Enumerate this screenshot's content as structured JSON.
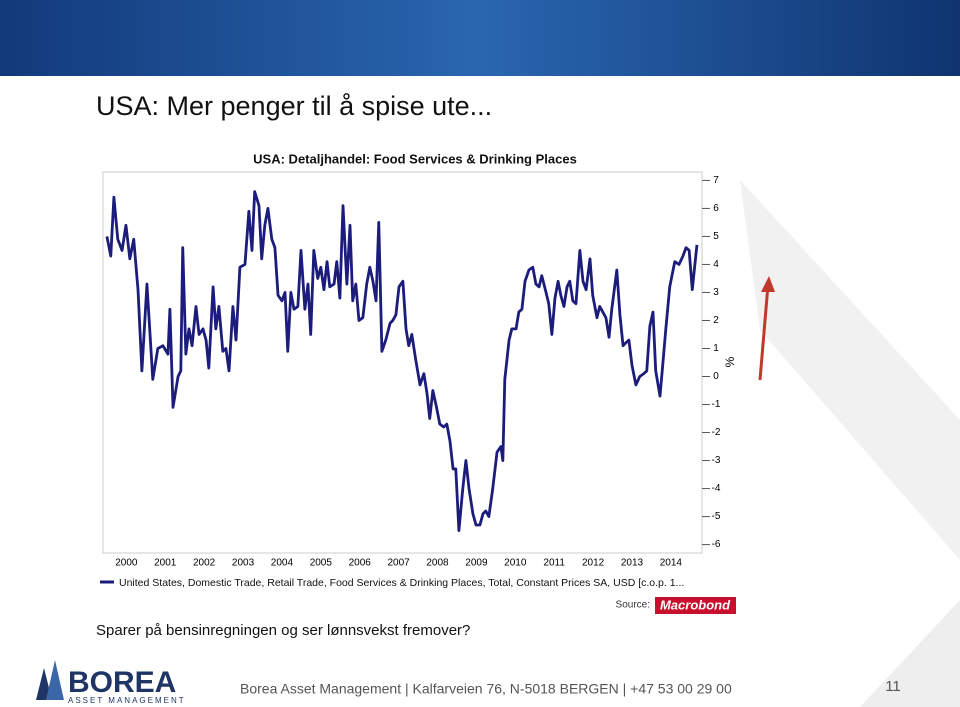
{
  "slide": {
    "title": "USA: Mer penger til å spise ute...",
    "note": "Sparer på bensinregningen og ser lønnsvekst fremover?",
    "logo": "BOREA",
    "logo_sub": "ASSET MANAGEMENT",
    "footer": "Borea Asset Management | Kalfarveien 76, N-5018 BERGEN | +47 53 00 29 00",
    "page_number": "11"
  },
  "chart_data": {
    "type": "line",
    "title": "USA: Detaljhandel: Food Services & Drinking Places",
    "y_axis_label": "%",
    "source": "Source:",
    "source_logo": "Macrobond",
    "xlim": [
      1999.9,
      2015.3
    ],
    "xticks": [
      {
        "value": 2000.5,
        "label": "2000"
      },
      {
        "value": 2001.5,
        "label": "2001"
      },
      {
        "value": 2002.5,
        "label": "2002"
      },
      {
        "value": 2003.5,
        "label": "2003"
      },
      {
        "value": 2004.5,
        "label": "2004"
      },
      {
        "value": 2005.5,
        "label": "2005"
      },
      {
        "value": 2006.5,
        "label": "2006"
      },
      {
        "value": 2007.5,
        "label": "2007"
      },
      {
        "value": 2008.5,
        "label": "2008"
      },
      {
        "value": 2009.5,
        "label": "2009"
      },
      {
        "value": 2010.5,
        "label": "2010"
      },
      {
        "value": 2011.5,
        "label": "2011"
      },
      {
        "value": 2012.5,
        "label": "2012"
      },
      {
        "value": 2013.5,
        "label": "2013"
      },
      {
        "value": 2014.5,
        "label": "2014"
      }
    ],
    "ylim": [
      -6.3,
      7.3
    ],
    "yticks": [
      -6,
      -5,
      -4,
      -3,
      -2,
      -1,
      0,
      1,
      2,
      3,
      4,
      5,
      6,
      7
    ],
    "x": [
      2000.0,
      2000.1,
      2000.18,
      2000.28,
      2000.39,
      2000.49,
      2000.59,
      2000.69,
      2000.8,
      2000.9,
      2001.03,
      2001.18,
      2001.31,
      2001.44,
      2001.57,
      2001.62,
      2001.7,
      2001.83,
      2001.9,
      2001.95,
      2002.03,
      2002.11,
      2002.19,
      2002.29,
      2002.37,
      2002.47,
      2002.55,
      2002.62,
      2002.73,
      2002.8,
      2002.88,
      2002.98,
      2003.06,
      2003.14,
      2003.24,
      2003.32,
      2003.42,
      2003.55,
      2003.65,
      2003.73,
      2003.8,
      2003.91,
      2003.98,
      2004.06,
      2004.14,
      2004.24,
      2004.32,
      2004.4,
      2004.5,
      2004.58,
      2004.65,
      2004.73,
      2004.81,
      2004.91,
      2004.99,
      2005.09,
      2005.17,
      2005.24,
      2005.32,
      2005.42,
      2005.5,
      2005.58,
      2005.66,
      2005.73,
      2005.84,
      2005.91,
      2005.99,
      2006.07,
      2006.17,
      2006.25,
      2006.32,
      2006.4,
      2006.48,
      2006.58,
      2006.68,
      2006.76,
      2006.84,
      2006.92,
      2006.99,
      2007.07,
      2007.17,
      2007.28,
      2007.35,
      2007.43,
      2007.51,
      2007.61,
      2007.69,
      2007.76,
      2007.84,
      2007.94,
      2008.05,
      2008.15,
      2008.23,
      2008.3,
      2008.38,
      2008.46,
      2008.56,
      2008.66,
      2008.74,
      2008.82,
      2008.9,
      2008.97,
      2009.05,
      2009.15,
      2009.23,
      2009.31,
      2009.41,
      2009.49,
      2009.59,
      2009.67,
      2009.74,
      2009.82,
      2009.92,
      2010.03,
      2010.13,
      2010.18,
      2010.23,
      2010.34,
      2010.41,
      2010.52,
      2010.59,
      2010.67,
      2010.75,
      2010.85,
      2010.95,
      2011.03,
      2011.11,
      2011.18,
      2011.29,
      2011.36,
      2011.44,
      2011.52,
      2011.6,
      2011.67,
      2011.75,
      2011.83,
      2011.9,
      2011.98,
      2012.06,
      2012.16,
      2012.24,
      2012.32,
      2012.42,
      2012.49,
      2012.6,
      2012.67,
      2012.75,
      2012.83,
      2012.91,
      2012.98,
      2013.11,
      2013.19,
      2013.27,
      2013.34,
      2013.42,
      2013.5,
      2013.6,
      2013.7,
      2013.8,
      2013.88,
      2013.96,
      2014.04,
      2014.11,
      2014.22,
      2014.29,
      2014.37,
      2014.47,
      2014.6,
      2014.71,
      2014.81,
      2014.89,
      2014.97,
      2015.05,
      2015.17
    ],
    "series": [
      {
        "name": "United States, Domestic Trade, Retail Trade, Food Services & Drinking Places, Total, Constant Prices SA, USD [c.o.p. 1...",
        "color": "#1c1c7c",
        "values": [
          5.0,
          4.3,
          6.4,
          4.9,
          4.5,
          5.4,
          4.2,
          4.9,
          3.1,
          0.2,
          3.3,
          -0.1,
          1.0,
          1.1,
          0.8,
          2.4,
          -1.1,
          0.0,
          0.2,
          4.6,
          0.8,
          1.7,
          1.1,
          2.5,
          1.5,
          1.7,
          1.3,
          0.3,
          3.2,
          1.7,
          2.5,
          0.9,
          1.0,
          0.2,
          2.5,
          1.3,
          3.9,
          4.0,
          5.9,
          4.5,
          6.6,
          6.1,
          4.2,
          5.4,
          6.0,
          4.9,
          4.6,
          2.9,
          2.7,
          3.0,
          0.9,
          3.0,
          2.4,
          2.5,
          4.5,
          2.4,
          3.3,
          1.5,
          4.5,
          3.5,
          3.9,
          3.1,
          4.1,
          3.2,
          3.3,
          4.1,
          2.8,
          6.1,
          3.3,
          5.4,
          2.7,
          3.3,
          2.0,
          2.1,
          3.3,
          3.9,
          3.4,
          2.7,
          5.5,
          0.9,
          1.3,
          1.9,
          2.0,
          2.2,
          3.2,
          3.4,
          1.7,
          1.1,
          1.5,
          0.6,
          -0.3,
          0.1,
          -0.6,
          -1.5,
          -0.5,
          -1.0,
          -1.7,
          -1.8,
          -1.7,
          -2.3,
          -3.3,
          -3.3,
          -5.5,
          -4.0,
          -3.0,
          -4.0,
          -4.9,
          -5.3,
          -5.3,
          -4.9,
          -4.8,
          -5.0,
          -4.0,
          -2.7,
          -2.5,
          -3.0,
          -0.1,
          1.3,
          1.7,
          1.7,
          2.3,
          2.4,
          3.4,
          3.8,
          3.9,
          3.3,
          3.2,
          3.6,
          3.0,
          2.6,
          1.5,
          2.8,
          3.4,
          2.9,
          2.5,
          3.2,
          3.4,
          2.7,
          2.6,
          4.5,
          3.4,
          3.1,
          4.2,
          2.9,
          2.1,
          2.5,
          2.3,
          2.1,
          1.4,
          2.4,
          3.8,
          2.2,
          1.1,
          1.2,
          1.3,
          0.4,
          -0.3,
          0.0,
          0.1,
          0.2,
          1.8,
          2.3,
          0.2,
          -0.7,
          0.4,
          1.7,
          3.2,
          4.1,
          4.0,
          4.3,
          4.6,
          4.5,
          3.1,
          4.7
        ]
      }
    ]
  }
}
